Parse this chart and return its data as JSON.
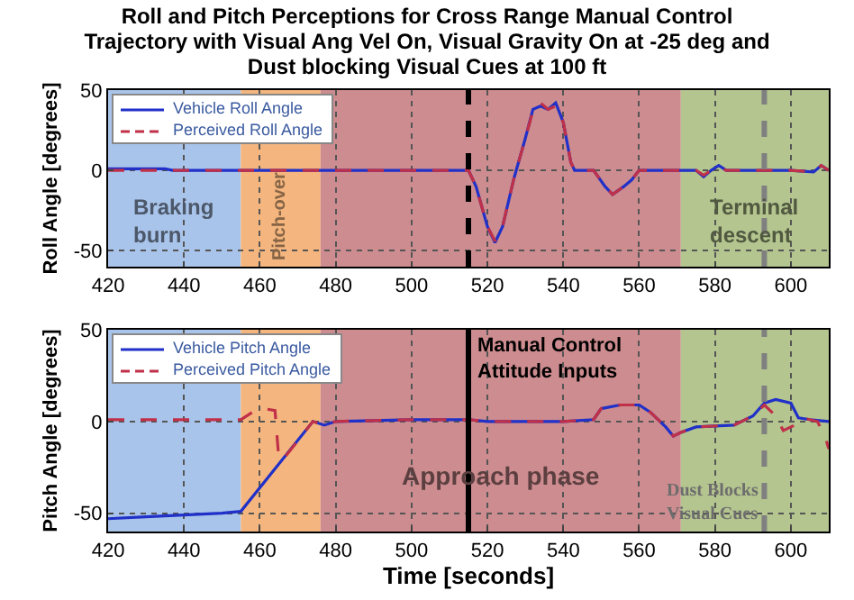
{
  "chart_data": [
    {
      "type": "line",
      "title": "Roll and Pitch Perceptions for Cross Range Manual Control Trajectory with Visual Ang Vel On, Visual Gravity On at -25 deg and Dust blocking Visual Cues at 100 ft",
      "ylabel": "Roll Angle [degrees]",
      "xlim": [
        420,
        610
      ],
      "xticks": [
        420,
        440,
        460,
        480,
        500,
        520,
        540,
        560,
        580,
        600
      ],
      "ylim": [
        -60,
        50
      ],
      "yticks": [
        -50,
        0,
        50
      ],
      "grid": true,
      "legend": "top left",
      "series": [
        {
          "name": "Vehicle Roll Angle",
          "color": "#2030c8",
          "line_style": "solid",
          "x": [
            420,
            435,
            437,
            515,
            517,
            520,
            522,
            524,
            527,
            530,
            532,
            534,
            536,
            538,
            540,
            542,
            543,
            548,
            551,
            553,
            556,
            558,
            560,
            563,
            575,
            577,
            579,
            581,
            583,
            600,
            606,
            608,
            610
          ],
          "values": [
            1,
            1,
            0,
            0,
            -10,
            -35,
            -45,
            -35,
            -5,
            20,
            38,
            40,
            38,
            42,
            30,
            5,
            0,
            0,
            -10,
            -15,
            -10,
            -6,
            0,
            0,
            0,
            -4,
            0,
            3,
            0,
            0,
            -1,
            3,
            0
          ]
        },
        {
          "name": "Perceived Roll Angle",
          "color": "#c03048",
          "line_style": "dashed",
          "x": [
            420,
            515,
            517,
            520,
            522,
            524,
            527,
            530,
            532,
            534,
            536,
            538,
            540,
            542,
            543,
            548,
            551,
            553,
            556,
            558,
            560,
            563,
            575,
            577,
            579,
            581,
            583,
            600,
            606,
            608,
            610
          ],
          "values": [
            0,
            0,
            -10,
            -35,
            -44,
            -35,
            -5,
            20,
            37,
            42,
            38,
            40,
            30,
            5,
            0,
            0,
            -10,
            -15,
            -10,
            -6,
            0,
            0,
            0,
            -3,
            0,
            2,
            0,
            0,
            -1,
            3,
            0
          ]
        }
      ],
      "bands": [
        {
          "axis": "x",
          "from": 420,
          "to": 455,
          "color": "#a9c4ea",
          "label": "Braking burn"
        },
        {
          "axis": "x",
          "from": 455,
          "to": 476,
          "color": "#f4b67e"
        },
        {
          "axis": "x",
          "from": 476,
          "to": 571,
          "color": "#cd8c8f"
        },
        {
          "axis": "x",
          "from": 571,
          "to": 610,
          "color": "#b4c58f",
          "label": "Terminal descent"
        }
      ],
      "annotations": [
        "Pitch-over"
      ],
      "ref_lines": [
        {
          "axis": "x",
          "value": 515,
          "color": "#000000",
          "line_style": "dashed"
        },
        {
          "axis": "x",
          "value": 593,
          "color": "#808080",
          "line_style": "dashed"
        }
      ]
    },
    {
      "type": "line",
      "xlabel": "Time [seconds]",
      "ylabel": "Pitch Angle [degrees]",
      "xlim": [
        420,
        610
      ],
      "xticks": [
        420,
        440,
        460,
        480,
        500,
        520,
        540,
        560,
        580,
        600
      ],
      "ylim": [
        -60,
        50
      ],
      "yticks": [
        -50,
        0,
        50
      ],
      "grid": true,
      "legend": "top left",
      "series": [
        {
          "name": "Vehicle Pitch Angle",
          "color": "#2030c8",
          "line_style": "solid",
          "x": [
            420,
            430,
            440,
            450,
            455,
            474,
            477,
            480,
            500,
            515,
            520,
            540,
            548,
            550,
            555,
            560,
            563,
            567,
            569,
            571,
            575,
            585,
            590,
            593,
            596,
            600,
            602,
            605,
            610
          ],
          "values": [
            -53,
            -52,
            -51,
            -50,
            -49,
            0,
            -2,
            0,
            1,
            1,
            0,
            0,
            1,
            7,
            9,
            9,
            5,
            -3,
            -8,
            -6,
            -3,
            -2,
            3,
            10,
            12,
            10,
            2,
            1,
            0
          ]
        },
        {
          "name": "Perceived Pitch Angle",
          "color": "#c03048",
          "line_style": "dashed",
          "x": [
            420,
            455,
            458,
            461,
            464,
            465,
            466,
            474,
            477,
            480,
            500,
            515,
            520,
            540,
            548,
            550,
            555,
            560,
            563,
            567,
            569,
            571,
            575,
            585,
            590,
            593,
            596,
            598,
            601,
            603,
            607,
            609,
            610
          ],
          "values": [
            1,
            1,
            5,
            7,
            6,
            -20,
            -21,
            0,
            -2,
            0,
            1,
            1,
            0,
            0,
            1,
            7,
            9,
            9,
            5,
            -3,
            -8,
            -6,
            -3,
            -2,
            3,
            9,
            3,
            -5,
            -2,
            2,
            0,
            -8,
            -15
          ]
        }
      ],
      "bands": [
        {
          "axis": "x",
          "from": 420,
          "to": 455,
          "color": "#a9c4ea"
        },
        {
          "axis": "x",
          "from": 455,
          "to": 476,
          "color": "#f4b67e"
        },
        {
          "axis": "x",
          "from": 476,
          "to": 571,
          "color": "#cd8c8f",
          "label": "Approach phase"
        },
        {
          "axis": "x",
          "from": 571,
          "to": 610,
          "color": "#b4c58f"
        }
      ],
      "ref_lines": [
        {
          "axis": "x",
          "value": 515,
          "color": "#000000",
          "line_style": "solid",
          "label": "Manual Control Attitude Inputs"
        },
        {
          "axis": "x",
          "value": 593,
          "color": "#808080",
          "line_style": "dashed",
          "label": "Dust Blocks Visual Cues"
        }
      ]
    }
  ]
}
